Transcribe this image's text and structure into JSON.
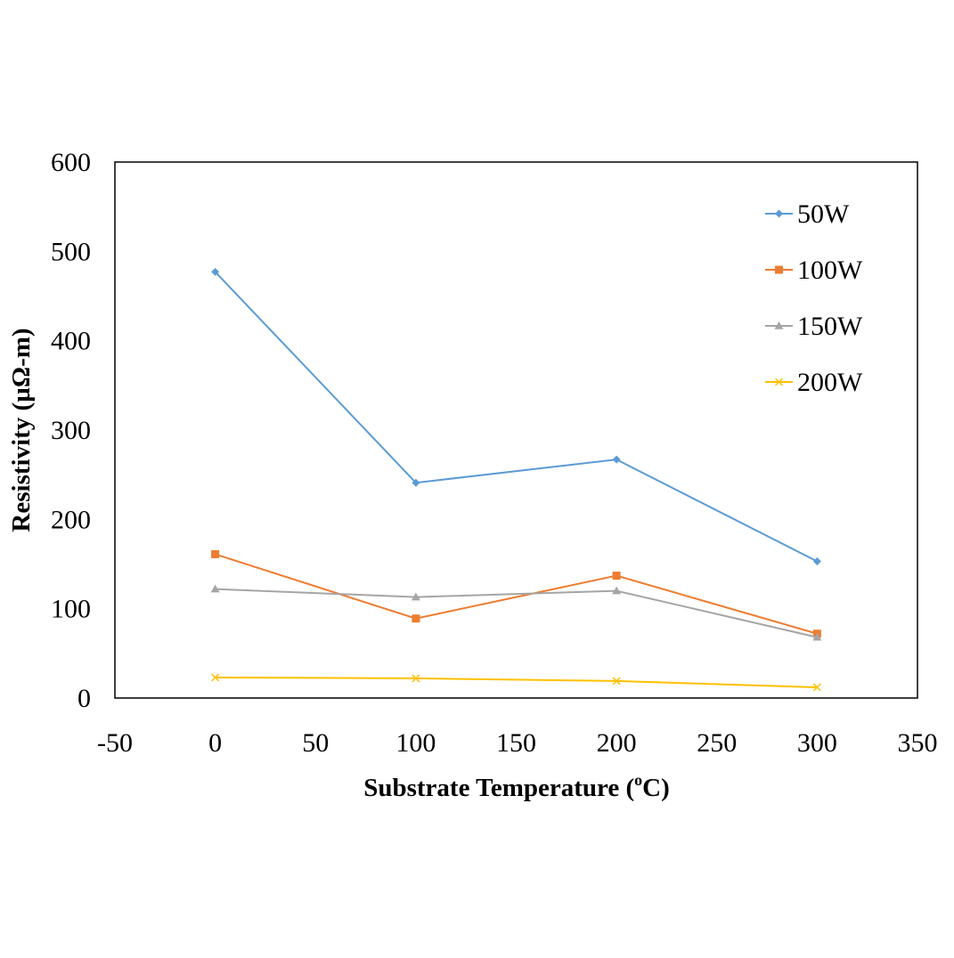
{
  "chart_data": {
    "type": "line",
    "xlabel": "Substrate Temperature (",
    "xlabel_sup": "o",
    "xlabel_suffix": "C)",
    "ylabel": "Resistivity (µΩ-m)",
    "xlim": [
      -50,
      350
    ],
    "ylim": [
      0,
      600
    ],
    "xticks": [
      -50,
      0,
      50,
      100,
      150,
      200,
      250,
      300,
      350
    ],
    "yticks": [
      0,
      100,
      200,
      300,
      400,
      500,
      600
    ],
    "grid": false,
    "legend_position": "top-right",
    "x": [
      0,
      100,
      200,
      300
    ],
    "series": [
      {
        "name": "50W",
        "values": [
          477,
          241,
          267,
          153
        ],
        "color": "#5B9BD5",
        "marker": "diamond"
      },
      {
        "name": "100W",
        "values": [
          161,
          89,
          137,
          72
        ],
        "color": "#ED7D31",
        "marker": "square"
      },
      {
        "name": "150W",
        "values": [
          122,
          113,
          120,
          68
        ],
        "color": "#A5A5A5",
        "marker": "triangle"
      },
      {
        "name": "200W",
        "values": [
          23,
          22,
          19,
          12
        ],
        "color": "#FFC000",
        "marker": "x"
      }
    ]
  }
}
